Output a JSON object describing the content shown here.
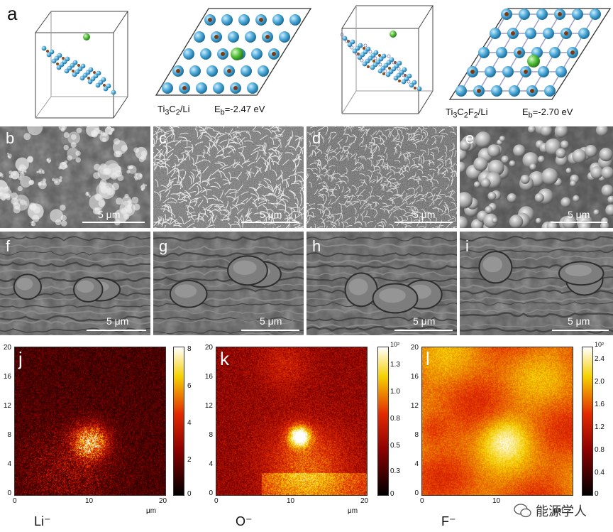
{
  "panel_a": {
    "label": "a",
    "struct1": {
      "system_base": "Ti",
      "sub3": "3",
      "c": "C",
      "sub2": "2",
      "suffix": "/Li",
      "eb_label": "E",
      "eb_sub": "b",
      "eb_value": "=-2.47 eV"
    },
    "struct2": {
      "system_base": "Ti",
      "sub3": "3",
      "c": "C",
      "sub2": "2",
      "f": "F",
      "subf": "2",
      "suffix": "/Li",
      "eb_label": "E",
      "eb_sub": "b",
      "eb_value": "=-2.70 eV"
    }
  },
  "sem_row1": [
    {
      "label": "b",
      "scale": "5  μm"
    },
    {
      "label": "c",
      "scale": "5  μm"
    },
    {
      "label": "d",
      "scale": "5  μm"
    },
    {
      "label": "e",
      "scale": "5  μm"
    }
  ],
  "sem_row2": [
    {
      "label": "f",
      "scale": "5  μm"
    },
    {
      "label": "g",
      "scale": "5  μm"
    },
    {
      "label": "h",
      "scale": "5  μm"
    },
    {
      "label": "i",
      "scale": "5  μm"
    }
  ],
  "maps": [
    {
      "label": "j",
      "ion": "Li⁻",
      "y_ticks": [
        "20",
        "16",
        "12",
        "8",
        "4",
        "0"
      ],
      "x_ticks": [
        "0",
        "10",
        "20"
      ],
      "x_unit": "μm",
      "cbar_ticks": [
        "8",
        "6",
        "4",
        "2",
        "0"
      ],
      "cbar_exp": ""
    },
    {
      "label": "k",
      "ion": "O⁻",
      "y_ticks": [
        "20",
        "16",
        "12",
        "8",
        "4",
        "0"
      ],
      "x_ticks": [
        "0",
        "10",
        "20"
      ],
      "x_unit": "μm",
      "cbar_ticks": [
        "1.3",
        "1.0",
        "0.8",
        "0.5",
        "0.3",
        "0"
      ],
      "cbar_exp": "10²"
    },
    {
      "label": "l",
      "ion": "F⁻",
      "y_ticks": [
        "20",
        "16",
        "12",
        "8",
        "4",
        "0"
      ],
      "x_ticks": [
        "0",
        "10"
      ],
      "x_unit": "μm",
      "cbar_ticks": [
        "2.4",
        "2.0",
        "1.6",
        "1.2",
        "0.8",
        "0.4",
        "0"
      ],
      "cbar_exp": "10²"
    }
  ],
  "watermark": "能源学人"
}
